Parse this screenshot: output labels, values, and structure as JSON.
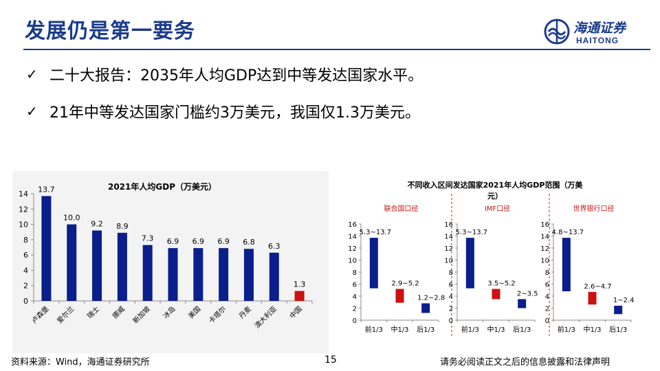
{
  "header": {
    "title": "发展仍是第一要务",
    "logo": {
      "name": "海通证券",
      "name_en": "HAITONG"
    }
  },
  "bullets": [
    "二十大报告：2035年人均GDP达到中等发达国家水平。",
    "21年中等发达国家门槛约3万美元，我国仅1.3万美元。"
  ],
  "colors": {
    "accent": "#1a3a8c",
    "bar_blue": "#0a1e8c",
    "bar_red": "#cc1111"
  },
  "chart_data": [
    {
      "type": "bar",
      "title": "2021年人均GDP（万美元）",
      "categories": [
        "卢森堡",
        "爱尔兰",
        "瑞士",
        "挪威",
        "新加坡",
        "冰岛",
        "美国",
        "卡塔尔",
        "丹麦",
        "澳大利亚",
        "中国"
      ],
      "values": [
        13.7,
        10.0,
        9.2,
        8.9,
        7.3,
        6.9,
        6.9,
        6.9,
        6.8,
        6.3,
        1.3
      ],
      "value_labels": [
        "13.7",
        "10.0",
        "9.2",
        "8.9",
        "7.3",
        "6.9",
        "6.9",
        "6.9",
        "6.8",
        "6.3",
        "1.3"
      ],
      "highlight": "中国",
      "ylim": [
        0,
        14
      ],
      "yticks": [
        "0",
        "2",
        "4",
        "6",
        "8",
        "10",
        "12",
        "14"
      ],
      "xlabel": "",
      "ylabel": ""
    },
    {
      "type": "range-bar",
      "title_line1": "不同收入区间发达国家2021年人均GDP范围（万美",
      "title_line2": "元）",
      "ylim": [
        0,
        16
      ],
      "yticks": [
        "0",
        "2",
        "4",
        "6",
        "8",
        "10",
        "12",
        "14",
        "16"
      ],
      "groups": [
        {
          "name": "联合国口径",
          "categories": [
            "前1/3",
            "中1/3",
            "后1/3"
          ],
          "ranges": [
            [
              5.3,
              13.7
            ],
            [
              2.9,
              5.2
            ],
            [
              1.2,
              2.8
            ]
          ],
          "labels": [
            "5.3~13.7",
            "2.9~5.2",
            "1.2~2.8"
          ]
        },
        {
          "name": "IMF口径",
          "categories": [
            "前1/3",
            "中1/3",
            "后1/3"
          ],
          "ranges": [
            [
              5.3,
              13.7
            ],
            [
              3.5,
              5.2
            ],
            [
              2.0,
              3.5
            ]
          ],
          "labels": [
            "5.3~13.7",
            "3.5~5.2",
            "2~3.5"
          ]
        },
        {
          "name": "世界银行口径",
          "categories": [
            "前1/3",
            "中1/3",
            "后1/3"
          ],
          "ranges": [
            [
              4.8,
              13.7
            ],
            [
              2.6,
              4.7
            ],
            [
              1.0,
              2.4
            ]
          ],
          "labels": [
            "4.8~13.7",
            "2.6~4.7",
            "1~2.4"
          ]
        }
      ]
    }
  ],
  "footer": {
    "source": "资料来源：Wind，海通证券研究所",
    "page": "15",
    "disclaimer": "请务必阅读正文之后的信息披露和法律声明"
  }
}
